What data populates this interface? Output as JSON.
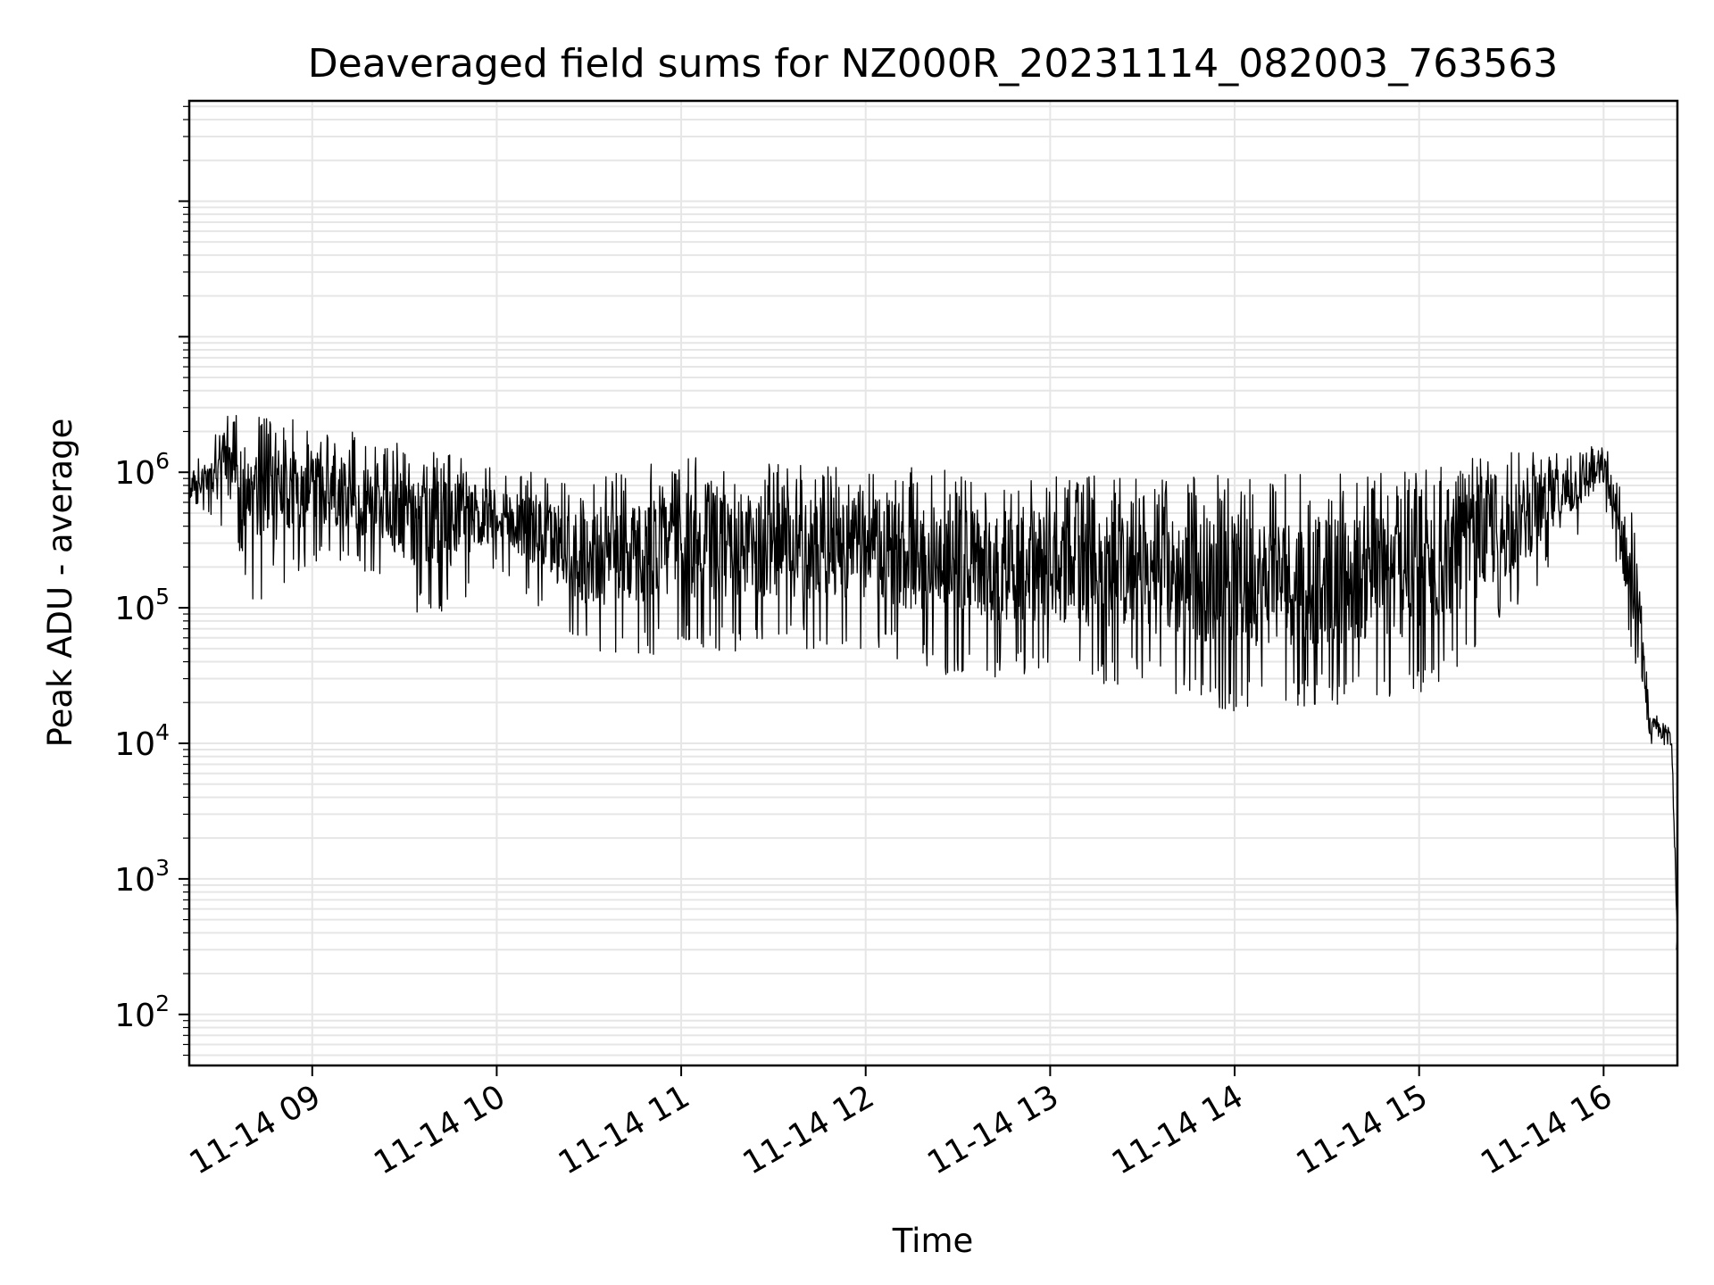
{
  "chart_data": {
    "type": "line",
    "title": "Deaveraged field sums for NZ000R_20231114_082003_763563",
    "xlabel": "Time",
    "ylabel": "Peak ADU - average",
    "y_scale": "log",
    "grid": "on (major and minor)",
    "xlim": [
      "2023-11-14 08:20",
      "2023-11-14 16:24"
    ],
    "ylim": [
      42,
      550000000
    ],
    "x_ticks": [
      "11-14 09",
      "11-14 10",
      "11-14 11",
      "11-14 12",
      "11-14 13",
      "11-14 14",
      "11-14 15",
      "11-14 16"
    ],
    "y_ticks": [
      {
        "base": "10",
        "exp": "2",
        "value": 100
      },
      {
        "base": "10",
        "exp": "3",
        "value": 1000
      },
      {
        "base": "10",
        "exp": "4",
        "value": 10000
      },
      {
        "base": "10",
        "exp": "5",
        "value": 100000
      },
      {
        "base": "10",
        "exp": "6",
        "value": 1000000
      }
    ],
    "series": [
      {
        "color": "#000000",
        "envelope": [
          {
            "time": "2023-11-14 08:20",
            "high": 1000000,
            "low": 650000
          },
          {
            "time": "2023-11-14 08:35",
            "high": 3200000,
            "low": 300000
          },
          {
            "time": "2023-11-14 08:40",
            "high": 2600000,
            "low": 100000
          },
          {
            "time": "2023-11-14 09:00",
            "high": 2500000,
            "low": 220000
          },
          {
            "time": "2023-11-14 09:20",
            "high": 1800000,
            "low": 170000
          },
          {
            "time": "2023-11-14 09:40",
            "high": 1500000,
            "low": 70000
          },
          {
            "time": "2023-11-14 10:00",
            "high": 1100000,
            "low": 200000
          },
          {
            "time": "2023-11-14 10:30",
            "high": 900000,
            "low": 45000
          },
          {
            "time": "2023-11-14 11:00",
            "high": 1300000,
            "low": 45000
          },
          {
            "time": "2023-11-14 11:30",
            "high": 1200000,
            "low": 48000
          },
          {
            "time": "2023-11-14 12:00",
            "high": 1100000,
            "low": 50000
          },
          {
            "time": "2023-11-14 12:30",
            "high": 1100000,
            "low": 30000
          },
          {
            "time": "2023-11-14 13:00",
            "high": 1000000,
            "low": 30000
          },
          {
            "time": "2023-11-14 13:30",
            "high": 900000,
            "low": 25000
          },
          {
            "time": "2023-11-14 14:00",
            "high": 1000000,
            "low": 17000
          },
          {
            "time": "2023-11-14 14:30",
            "high": 950000,
            "low": 18000
          },
          {
            "time": "2023-11-14 15:00",
            "high": 1100000,
            "low": 20000
          },
          {
            "time": "2023-11-14 15:30",
            "high": 1400000,
            "low": 80000
          },
          {
            "time": "2023-11-14 16:00",
            "high": 1700000,
            "low": 600000
          },
          {
            "time": "2023-11-14 16:10",
            "high": 500000,
            "low": 30000
          },
          {
            "time": "2023-11-14 16:15",
            "high": 18000,
            "low": 9000
          },
          {
            "time": "2023-11-14 16:22",
            "high": 14000,
            "low": 9500
          },
          {
            "time": "2023-11-14 16:24",
            "high": 500,
            "low": 300
          }
        ]
      }
    ]
  }
}
